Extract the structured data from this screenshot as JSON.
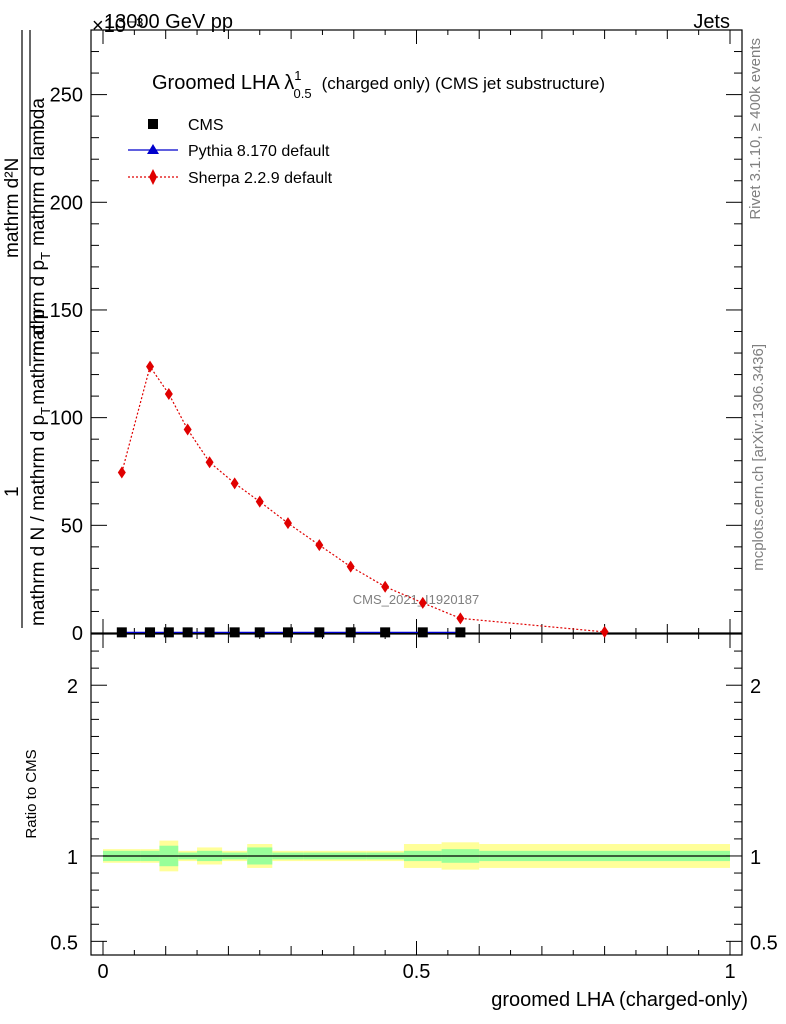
{
  "header": {
    "left_text": "13000 GeV pp",
    "right_text": "Jets",
    "exponent_text": "×10⁻³"
  },
  "title": {
    "prefix": "Groomed LHA ",
    "lambda": "λ",
    "sup": "1",
    "sub": "0.5",
    "suffix": "(charged only) (CMS jet substructure)"
  },
  "side_labels": {
    "rivet": "Rivet 3.1.10, ≥ 400k events",
    "mcplots": "mcplots.cern.ch [arXiv:1306.3436]"
  },
  "watermark": "CMS_2021_I1920187",
  "legend": {
    "cms": "CMS",
    "pythia": "Pythia 8.170 default",
    "sherpa": "Sherpa 2.2.9 default"
  },
  "colors": {
    "pythia": "#0000cc",
    "sherpa": "#e00000",
    "band_inner": "#99ff99",
    "band_outer": "#ffff99"
  },
  "chart_data": {
    "type": "line",
    "title": "Groomed LHA λ^1_0.5 (charged only) (CMS jet substructure)",
    "xlabel": "groomed LHA (charged-only)",
    "ylabel": "1 / mathrm d N / mathrm d p_T mathrm d p_T mathrm d lambda / mathrm d^2 N",
    "ylabel_parts": {
      "one": "1",
      "denominator_text": "mathrm d N / mathrm d p",
      "denominator_tail": "mathrm d p",
      "numerator": "mathrm d²N",
      "numerator_denominator": "mathrm d p",
      "lambda_text": "mathrm d lambda",
      "sub": "T"
    },
    "ratio_ylabel": "Ratio to CMS",
    "xlim": [
      0,
      1
    ],
    "ylim_main": [
      0,
      280
    ],
    "ylim_ratio": [
      0.42,
      2.3
    ],
    "y_scale_note": "×10⁻³",
    "x_ticks": [
      {
        "v": 0,
        "label": "0"
      },
      {
        "v": 0.5,
        "label": "0.5"
      },
      {
        "v": 1,
        "label": "1"
      }
    ],
    "y_ticks_main": [
      {
        "v": 0,
        "label": "0"
      },
      {
        "v": 50,
        "label": "50"
      },
      {
        "v": 100,
        "label": "100"
      },
      {
        "v": 150,
        "label": "150"
      },
      {
        "v": 200,
        "label": "200"
      },
      {
        "v": 250,
        "label": "250"
      }
    ],
    "y_ticks_ratio": [
      {
        "v": 0.5,
        "label": "0.5"
      },
      {
        "v": 1,
        "label": "1"
      },
      {
        "v": 2,
        "label": "2"
      }
    ],
    "bin_edges": [
      0,
      0.06,
      0.09,
      0.12,
      0.15,
      0.19,
      0.23,
      0.27,
      0.32,
      0.37,
      0.42,
      0.48,
      0.54,
      0.6,
      1.0
    ],
    "series": [
      {
        "name": "CMS",
        "x": [
          0.03,
          0.075,
          0.105,
          0.135,
          0.17,
          0.21,
          0.25,
          0.295,
          0.345,
          0.395,
          0.45,
          0.51,
          0.57
        ],
        "values": [
          0.3,
          0.3,
          0.3,
          0.3,
          0.3,
          0.3,
          0.3,
          0.3,
          0.3,
          0.3,
          0.3,
          0.3,
          0.3
        ]
      },
      {
        "name": "Pythia 8.170 default",
        "x": [
          0.03,
          0.075,
          0.105,
          0.135,
          0.17,
          0.21,
          0.25,
          0.295,
          0.345,
          0.395,
          0.45,
          0.51,
          0.57
        ],
        "values": [
          0.3,
          0.3,
          0.3,
          0.3,
          0.3,
          0.3,
          0.3,
          0.3,
          0.3,
          0.3,
          0.3,
          0.3,
          0.3
        ]
      },
      {
        "name": "Sherpa 2.2.9 default",
        "x": [
          0.03,
          0.075,
          0.105,
          0.135,
          0.17,
          0.21,
          0.25,
          0.295,
          0.345,
          0.395,
          0.45,
          0.51,
          0.57,
          0.8
        ],
        "values": [
          74.5,
          123.7,
          111,
          94.5,
          79.3,
          69.5,
          61,
          51,
          40.8,
          30.8,
          21.5,
          14,
          6.8,
          0.5
        ]
      }
    ],
    "ratio_bands": {
      "inner": [
        0.03,
        0.03,
        0.06,
        0.02,
        0.03,
        0.02,
        0.05,
        0.02,
        0.02,
        0.02,
        0.02,
        0.03,
        0.04,
        0.03,
        0.06
      ],
      "outer": [
        0.04,
        0.04,
        0.09,
        0.03,
        0.05,
        0.03,
        0.07,
        0.03,
        0.03,
        0.03,
        0.03,
        0.07,
        0.08,
        0.07,
        0.11
      ]
    }
  }
}
